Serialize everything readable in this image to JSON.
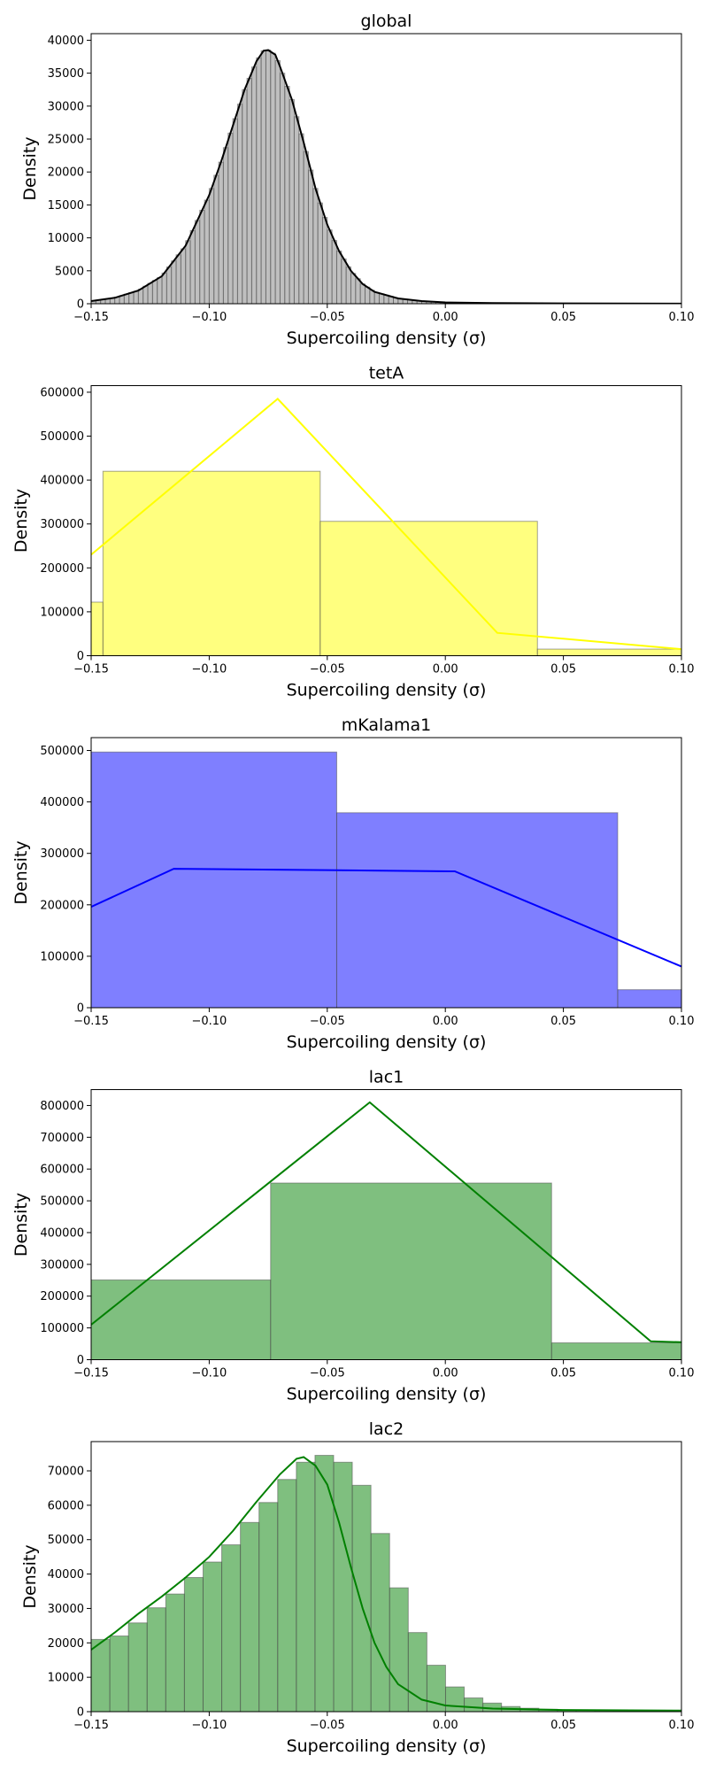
{
  "chart_data": [
    {
      "type": "bar",
      "title": "global",
      "xlabel": "Supercoiling density (σ)",
      "ylabel": "Density",
      "xlim": [
        -0.15,
        0.1
      ],
      "ylim": [
        0,
        41000
      ],
      "xticks": [
        "−0.15",
        "−0.10",
        "−0.05",
        "0.00",
        "0.05",
        "0.10"
      ],
      "yticks": [
        0,
        5000,
        10000,
        15000,
        20000,
        25000,
        30000,
        35000,
        40000
      ],
      "color": "#808080",
      "line_color": "#000000",
      "histogram": "dense, ~125 narrow bins",
      "kde": [
        [
          -0.15,
          400
        ],
        [
          -0.14,
          900
        ],
        [
          -0.13,
          2000
        ],
        [
          -0.12,
          4200
        ],
        [
          -0.11,
          8800
        ],
        [
          -0.1,
          16500
        ],
        [
          -0.095,
          21500
        ],
        [
          -0.09,
          27000
        ],
        [
          -0.085,
          32500
        ],
        [
          -0.08,
          36800
        ],
        [
          -0.077,
          38400
        ],
        [
          -0.075,
          38500
        ],
        [
          -0.072,
          37800
        ],
        [
          -0.07,
          36000
        ],
        [
          -0.065,
          31000
        ],
        [
          -0.06,
          24500
        ],
        [
          -0.055,
          17500
        ],
        [
          -0.05,
          12000
        ],
        [
          -0.045,
          8000
        ],
        [
          -0.04,
          5000
        ],
        [
          -0.035,
          3000
        ],
        [
          -0.03,
          1800
        ],
        [
          -0.02,
          800
        ],
        [
          -0.01,
          400
        ],
        [
          0.0,
          200
        ],
        [
          0.02,
          100
        ],
        [
          0.05,
          50
        ],
        [
          0.1,
          20
        ]
      ]
    },
    {
      "type": "bar",
      "title": "tetA",
      "xlabel": "Supercoiling density (σ)",
      "ylabel": "Density",
      "xlim": [
        -0.15,
        0.1
      ],
      "ylim": [
        0,
        615000
      ],
      "xticks": [
        "−0.15",
        "−0.10",
        "−0.05",
        "0.00",
        "0.05",
        "0.10"
      ],
      "yticks": [
        0,
        100000,
        200000,
        300000,
        400000,
        500000,
        600000
      ],
      "color": "#ffff00",
      "line_color": "#ffff00",
      "bins": [
        {
          "x0": -0.16,
          "x1": -0.145,
          "y": 122000
        },
        {
          "x0": -0.145,
          "x1": -0.053,
          "y": 420000
        },
        {
          "x0": -0.053,
          "x1": 0.039,
          "y": 306000
        },
        {
          "x0": 0.039,
          "x1": 0.131,
          "y": 15000
        }
      ],
      "kde": [
        [
          -0.15,
          230000
        ],
        [
          -0.071,
          585000
        ],
        [
          0.022,
          52000
        ],
        [
          0.1,
          15000
        ]
      ]
    },
    {
      "type": "bar",
      "title": "mKalama1",
      "xlabel": "Supercoiling density (σ)",
      "ylabel": "Density",
      "xlim": [
        -0.15,
        0.1
      ],
      "ylim": [
        0,
        525000
      ],
      "xticks": [
        "−0.15",
        "−0.10",
        "−0.05",
        "0.00",
        "0.05",
        "0.10"
      ],
      "yticks": [
        0,
        100000,
        200000,
        300000,
        400000,
        500000
      ],
      "color": "#0000ff",
      "line_color": "#0000ff",
      "bins": [
        {
          "x0": -0.165,
          "x1": -0.046,
          "y": 497000
        },
        {
          "x0": -0.046,
          "x1": 0.073,
          "y": 379000
        },
        {
          "x0": 0.073,
          "x1": 0.192,
          "y": 35000
        }
      ],
      "kde": [
        [
          -0.15,
          196000
        ],
        [
          -0.115,
          270000
        ],
        [
          0.004,
          265000
        ],
        [
          0.1,
          80000
        ]
      ]
    },
    {
      "type": "bar",
      "title": "lac1",
      "xlabel": "Supercoiling density (σ)",
      "ylabel": "Density",
      "xlim": [
        -0.15,
        0.1
      ],
      "ylim": [
        0,
        850000
      ],
      "xticks": [
        "−0.15",
        "−0.10",
        "−0.05",
        "0.00",
        "0.05",
        "0.10"
      ],
      "yticks": [
        0,
        100000,
        200000,
        300000,
        400000,
        500000,
        600000,
        700000,
        800000
      ],
      "color": "#008000",
      "line_color": "#008000",
      "bins": [
        {
          "x0": -0.193,
          "x1": -0.074,
          "y": 251000
        },
        {
          "x0": -0.074,
          "x1": 0.045,
          "y": 556000
        },
        {
          "x0": 0.045,
          "x1": 0.164,
          "y": 53000
        }
      ],
      "kde": [
        [
          -0.15,
          110000
        ],
        [
          -0.032,
          810000
        ],
        [
          0.087,
          58000
        ],
        [
          0.1,
          55000
        ]
      ]
    },
    {
      "type": "bar",
      "title": "lac2",
      "xlabel": "Supercoiling density (σ)",
      "ylabel": "Density",
      "xlim": [
        -0.15,
        0.1
      ],
      "ylim": [
        0,
        78500
      ],
      "xticks": [
        "−0.15",
        "−0.10",
        "−0.05",
        "0.00",
        "0.05",
        "0.10"
      ],
      "yticks": [
        0,
        10000,
        20000,
        30000,
        40000,
        50000,
        60000,
        70000
      ],
      "color": "#008000",
      "line_color": "#008000",
      "bin_start": -0.15,
      "bin_width": 0.0079,
      "values": [
        21000,
        22000,
        25800,
        30200,
        34200,
        39000,
        43500,
        48500,
        55000,
        60800,
        67500,
        72500,
        74500,
        72500,
        65800,
        51800,
        36000,
        23000,
        13500,
        7200,
        4000,
        2500,
        1500,
        1000,
        700,
        500,
        400,
        300,
        250,
        200,
        150,
        100
      ],
      "kde": [
        [
          -0.15,
          18000
        ],
        [
          -0.14,
          23000
        ],
        [
          -0.13,
          28500
        ],
        [
          -0.12,
          33500
        ],
        [
          -0.11,
          39000
        ],
        [
          -0.1,
          45000
        ],
        [
          -0.09,
          52500
        ],
        [
          -0.08,
          61000
        ],
        [
          -0.07,
          69000
        ],
        [
          -0.063,
          73500
        ],
        [
          -0.06,
          74000
        ],
        [
          -0.055,
          71500
        ],
        [
          -0.05,
          66000
        ],
        [
          -0.045,
          55000
        ],
        [
          -0.04,
          42000
        ],
        [
          -0.035,
          30000
        ],
        [
          -0.03,
          20000
        ],
        [
          -0.025,
          13000
        ],
        [
          -0.02,
          8000
        ],
        [
          -0.01,
          3500
        ],
        [
          0.0,
          1800
        ],
        [
          0.02,
          900
        ],
        [
          0.05,
          500
        ],
        [
          0.1,
          300
        ]
      ]
    }
  ]
}
